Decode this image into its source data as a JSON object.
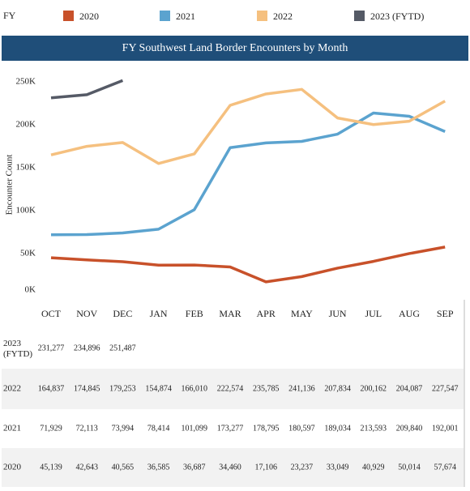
{
  "chart_data": {
    "type": "line",
    "legend_title": "FY",
    "title": "FY Southwest Land Border Encounters by Month",
    "y_label": "Encounter Count",
    "categories": [
      "OCT",
      "NOV",
      "DEC",
      "JAN",
      "FEB",
      "MAR",
      "APR",
      "MAY",
      "JUN",
      "JUL",
      "AUG",
      "SEP"
    ],
    "ylim": [
      0,
      265000
    ],
    "yticks": [
      {
        "value": 0,
        "label": "0K"
      },
      {
        "value": 50000,
        "label": "50K"
      },
      {
        "value": 100000,
        "label": "100K"
      },
      {
        "value": 150000,
        "label": "150K"
      },
      {
        "value": 200000,
        "label": "200K"
      },
      {
        "value": 250000,
        "label": "250K"
      }
    ],
    "grid": false,
    "series": [
      {
        "name": "2020",
        "color": "#c8512a",
        "values": [
          45139,
          42643,
          40565,
          36585,
          36687,
          34460,
          17106,
          23237,
          33049,
          40929,
          50014,
          57674
        ],
        "value_labels": [
          "45,139",
          "42,643",
          "40,565",
          "36,585",
          "36,687",
          "34,460",
          "17,106",
          "23,237",
          "33,049",
          "40,929",
          "50,014",
          "57,674"
        ]
      },
      {
        "name": "2021",
        "color": "#5ba3cf",
        "values": [
          71929,
          72113,
          73994,
          78414,
          101099,
          173277,
          178795,
          180597,
          189034,
          213593,
          209840,
          192001
        ],
        "value_labels": [
          "71,929",
          "72,113",
          "73,994",
          "78,414",
          "101,099",
          "173,277",
          "178,795",
          "180,597",
          "189,034",
          "213,593",
          "209,840",
          "192,001"
        ]
      },
      {
        "name": "2022",
        "color": "#f5c07f",
        "values": [
          164837,
          174845,
          179253,
          154874,
          166010,
          222574,
          235785,
          241136,
          207834,
          200162,
          204087,
          227547
        ],
        "value_labels": [
          "164,837",
          "174,845",
          "179,253",
          "154,874",
          "166,010",
          "222,574",
          "235,785",
          "241,136",
          "207,834",
          "200,162",
          "204,087",
          "227,547"
        ]
      },
      {
        "name": "2023 (FYTD)",
        "color": "#555a66",
        "values": [
          231277,
          234896,
          251487,
          null,
          null,
          null,
          null,
          null,
          null,
          null,
          null,
          null
        ],
        "value_labels": [
          "231,277",
          "234,896",
          "251,487",
          null,
          null,
          null,
          null,
          null,
          null,
          null,
          null,
          null
        ]
      }
    ]
  }
}
